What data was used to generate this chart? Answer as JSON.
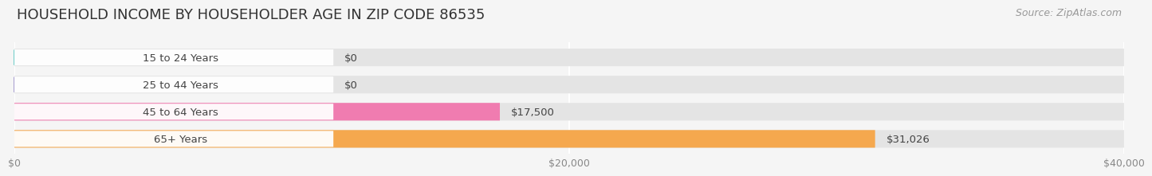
{
  "title": "HOUSEHOLD INCOME BY HOUSEHOLDER AGE IN ZIP CODE 86535",
  "source": "Source: ZipAtlas.com",
  "categories": [
    "15 to 24 Years",
    "25 to 44 Years",
    "45 to 64 Years",
    "65+ Years"
  ],
  "values": [
    0,
    0,
    17500,
    31026
  ],
  "bar_colors": [
    "#72cec9",
    "#a89fd0",
    "#f07cb0",
    "#f5a84e"
  ],
  "bar_labels": [
    "$0",
    "$0",
    "$17,500",
    "$31,026"
  ],
  "xlim": [
    0,
    40000
  ],
  "xticks": [
    0,
    20000,
    40000
  ],
  "xtick_labels": [
    "$0",
    "$20,000",
    "$40,000"
  ],
  "background_color": "#f5f5f5",
  "bar_bg_color": "#e4e4e4",
  "label_pill_color": "#ffffff",
  "title_fontsize": 13,
  "label_fontsize": 9.5,
  "tick_fontsize": 9,
  "source_fontsize": 9
}
